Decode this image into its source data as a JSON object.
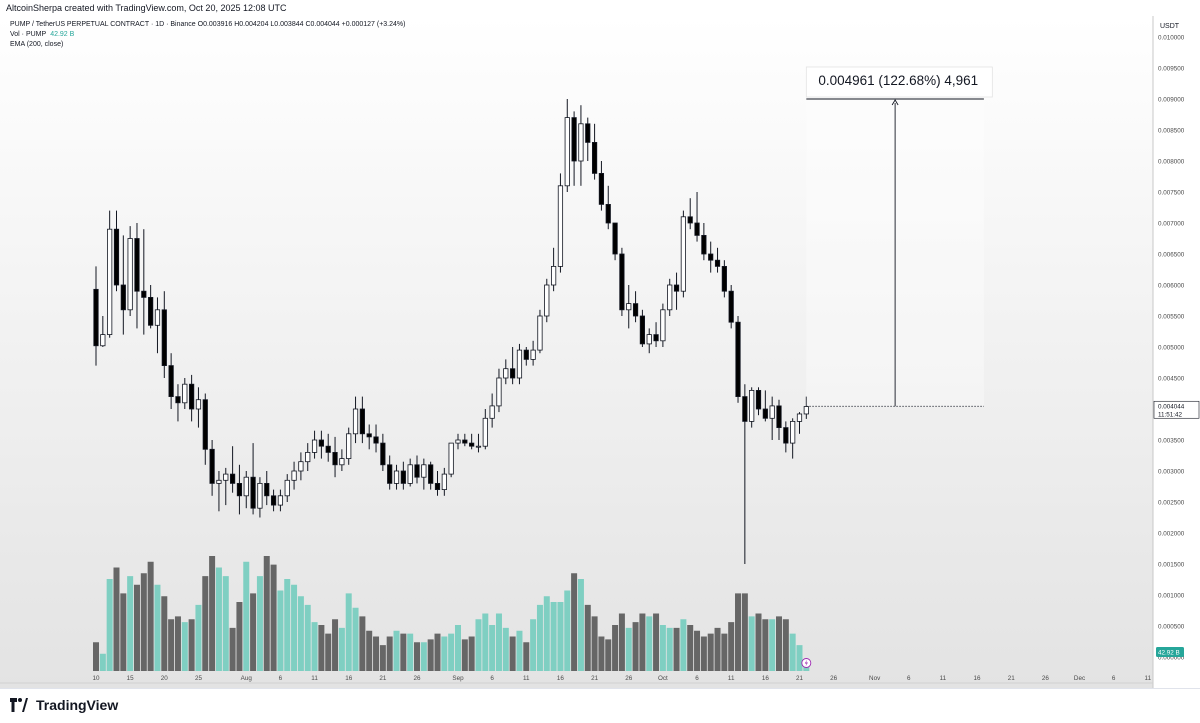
{
  "header": {
    "attribution": "AltcoinSherpa created with TradingView.com, Oct 20, 2025 12:08 UTC"
  },
  "legend": {
    "symbol_line": "PUMP / TetherUS PERPETUAL CONTRACT · 1D · Binance  O0.003916  H0.004204  L0.003844  C0.004044  +0.000127 (+3.24%)",
    "vol_label": "Vol · PUMP",
    "vol_value": "42.92 B",
    "ema_label": "EMA (200, close)"
  },
  "footer": {
    "brand": "TradingView"
  },
  "colors": {
    "up_candle": "#ffffff",
    "down_candle": "#000000",
    "candle_border": "#131722",
    "vol_up": "#7fcfc2",
    "vol_down": "#666666",
    "measure_line": "#131722",
    "vol_badge": "#26a69a"
  },
  "chart_data": {
    "type": "candlestick",
    "currency": "USDT",
    "ylim": [
      0.0,
      0.0102
    ],
    "y_ticks": [
      "0.010000",
      "0.009500",
      "0.009000",
      "0.008500",
      "0.008000",
      "0.007500",
      "0.007000",
      "0.006500",
      "0.006000",
      "0.005500",
      "0.005000",
      "0.004500",
      "0.004000",
      "0.003500",
      "0.003000",
      "0.002500",
      "0.002000",
      "0.001500",
      "0.001000",
      "0.000500",
      "0.000000"
    ],
    "x_ticks": [
      {
        "label": "10",
        "day": 0
      },
      {
        "label": "15",
        "day": 5
      },
      {
        "label": "20",
        "day": 10
      },
      {
        "label": "25",
        "day": 15
      },
      {
        "label": "Aug",
        "day": 22
      },
      {
        "label": "6",
        "day": 27
      },
      {
        "label": "11",
        "day": 32
      },
      {
        "label": "16",
        "day": 37
      },
      {
        "label": "21",
        "day": 42
      },
      {
        "label": "26",
        "day": 47
      },
      {
        "label": "Sep",
        "day": 53
      },
      {
        "label": "6",
        "day": 58
      },
      {
        "label": "11",
        "day": 63
      },
      {
        "label": "16",
        "day": 68
      },
      {
        "label": "21",
        "day": 73
      },
      {
        "label": "26",
        "day": 78
      },
      {
        "label": "Oct",
        "day": 83
      },
      {
        "label": "6",
        "day": 88
      },
      {
        "label": "11",
        "day": 93
      },
      {
        "label": "16",
        "day": 98
      },
      {
        "label": "21",
        "day": 103
      },
      {
        "label": "26",
        "day": 108
      },
      {
        "label": "Nov",
        "day": 114
      },
      {
        "label": "6",
        "day": 119
      },
      {
        "label": "11",
        "day": 124
      },
      {
        "label": "16",
        "day": 129
      },
      {
        "label": "21",
        "day": 134
      },
      {
        "label": "26",
        "day": 139
      },
      {
        "label": "Dec",
        "day": 144
      },
      {
        "label": "6",
        "day": 149
      },
      {
        "label": "11",
        "day": 154
      }
    ],
    "candles": [
      [
        0.00593,
        0.0063,
        0.0047,
        0.00502,
        1.0
      ],
      [
        0.00502,
        0.0055,
        0.005,
        0.0052,
        0.6
      ],
      [
        0.0052,
        0.0072,
        0.00515,
        0.0069,
        3.2
      ],
      [
        0.0069,
        0.0072,
        0.0059,
        0.006,
        3.6
      ],
      [
        0.006,
        0.0068,
        0.0052,
        0.0056,
        2.7
      ],
      [
        0.0056,
        0.00695,
        0.0055,
        0.00675,
        3.3
      ],
      [
        0.00675,
        0.007,
        0.0053,
        0.0059,
        3.0
      ],
      [
        0.0059,
        0.0069,
        0.0052,
        0.0058,
        3.4
      ],
      [
        0.0058,
        0.006,
        0.0053,
        0.00535,
        3.8
      ],
      [
        0.00535,
        0.0058,
        0.0049,
        0.0056,
        3.0
      ],
      [
        0.0056,
        0.0059,
        0.0045,
        0.0047,
        2.6
      ],
      [
        0.0047,
        0.0049,
        0.004,
        0.0042,
        1.8
      ],
      [
        0.0042,
        0.0044,
        0.0038,
        0.0041,
        1.9
      ],
      [
        0.0041,
        0.0045,
        0.004,
        0.0044,
        1.7
      ],
      [
        0.0044,
        0.00455,
        0.0038,
        0.004,
        1.8
      ],
      [
        0.004,
        0.00435,
        0.0037,
        0.00415,
        2.3
      ],
      [
        0.00415,
        0.00425,
        0.0031,
        0.00335,
        3.3
      ],
      [
        0.00335,
        0.0035,
        0.0026,
        0.0028,
        4.0
      ],
      [
        0.0028,
        0.003,
        0.00235,
        0.00285,
        3.6
      ],
      [
        0.00285,
        0.00305,
        0.00245,
        0.00295,
        3.3
      ],
      [
        0.00295,
        0.0034,
        0.00265,
        0.0028,
        1.5
      ],
      [
        0.0028,
        0.0031,
        0.0023,
        0.0026,
        2.4
      ],
      [
        0.0026,
        0.003,
        0.0024,
        0.0029,
        3.8
      ],
      [
        0.0029,
        0.00345,
        0.0023,
        0.0024,
        2.7
      ],
      [
        0.0024,
        0.0029,
        0.00225,
        0.0028,
        3.3
      ],
      [
        0.0028,
        0.003,
        0.00245,
        0.0026,
        4.0
      ],
      [
        0.0026,
        0.0027,
        0.00235,
        0.00245,
        3.7
      ],
      [
        0.00245,
        0.0027,
        0.00235,
        0.0026,
        2.8
      ],
      [
        0.0026,
        0.00295,
        0.0025,
        0.00285,
        3.2
      ],
      [
        0.00285,
        0.00315,
        0.0027,
        0.003,
        3.0
      ],
      [
        0.003,
        0.0033,
        0.00285,
        0.00315,
        2.6
      ],
      [
        0.00315,
        0.00345,
        0.003,
        0.0033,
        2.3
      ],
      [
        0.0033,
        0.00365,
        0.0032,
        0.0035,
        1.7
      ],
      [
        0.0035,
        0.00365,
        0.0032,
        0.0034,
        1.6
      ],
      [
        0.0034,
        0.0036,
        0.00315,
        0.0033,
        1.3
      ],
      [
        0.0033,
        0.00355,
        0.0029,
        0.0031,
        1.8
      ],
      [
        0.0031,
        0.00335,
        0.003,
        0.0032,
        1.5
      ],
      [
        0.0032,
        0.0037,
        0.0031,
        0.0036,
        2.7
      ],
      [
        0.0036,
        0.0042,
        0.00345,
        0.004,
        2.2
      ],
      [
        0.004,
        0.0042,
        0.00345,
        0.0036,
        1.9
      ],
      [
        0.0036,
        0.00375,
        0.00335,
        0.00355,
        1.4
      ],
      [
        0.00355,
        0.00375,
        0.0033,
        0.00345,
        1.2
      ],
      [
        0.00345,
        0.0036,
        0.003,
        0.0031,
        0.9
      ],
      [
        0.0031,
        0.00325,
        0.0027,
        0.0028,
        1.2
      ],
      [
        0.0028,
        0.0031,
        0.0027,
        0.003,
        1.4
      ],
      [
        0.003,
        0.00315,
        0.0027,
        0.0028,
        1.3
      ],
      [
        0.0028,
        0.0032,
        0.00275,
        0.0031,
        1.3
      ],
      [
        0.0031,
        0.00325,
        0.0028,
        0.0029,
        1.0
      ],
      [
        0.0029,
        0.0032,
        0.0027,
        0.0031,
        1.0
      ],
      [
        0.0031,
        0.00315,
        0.0027,
        0.0028,
        1.1
      ],
      [
        0.0028,
        0.003,
        0.0026,
        0.0027,
        1.3
      ],
      [
        0.0027,
        0.00305,
        0.0026,
        0.00295,
        1.2
      ],
      [
        0.00295,
        0.00345,
        0.0029,
        0.00345,
        1.3
      ],
      [
        0.00345,
        0.0036,
        0.00335,
        0.0035,
        1.6
      ],
      [
        0.0035,
        0.0036,
        0.0034,
        0.00345,
        1.1
      ],
      [
        0.00345,
        0.0036,
        0.00335,
        0.0034,
        1.2
      ],
      [
        0.0034,
        0.0036,
        0.0033,
        0.0034,
        1.8
      ],
      [
        0.0034,
        0.004,
        0.00335,
        0.00385,
        2.0
      ],
      [
        0.00385,
        0.00425,
        0.0037,
        0.00405,
        1.6
      ],
      [
        0.00405,
        0.00465,
        0.00395,
        0.0045,
        2.0
      ],
      [
        0.0045,
        0.0048,
        0.0044,
        0.00465,
        1.5
      ],
      [
        0.00465,
        0.005,
        0.0044,
        0.0045,
        1.2
      ],
      [
        0.0045,
        0.00505,
        0.0044,
        0.00495,
        1.4
      ],
      [
        0.00495,
        0.005,
        0.0047,
        0.0048,
        1.0
      ],
      [
        0.0048,
        0.0051,
        0.0047,
        0.00495,
        1.8
      ],
      [
        0.00495,
        0.0056,
        0.0049,
        0.0055,
        2.3
      ],
      [
        0.0055,
        0.0061,
        0.0054,
        0.006,
        2.6
      ],
      [
        0.006,
        0.0066,
        0.0059,
        0.0063,
        2.4
      ],
      [
        0.0063,
        0.0078,
        0.0062,
        0.0076,
        2.4
      ],
      [
        0.0076,
        0.009,
        0.0075,
        0.0087,
        2.8
      ],
      [
        0.0087,
        0.0088,
        0.0076,
        0.008,
        3.4
      ],
      [
        0.008,
        0.0089,
        0.0076,
        0.0086,
        3.2
      ],
      [
        0.0086,
        0.0087,
        0.008,
        0.0083,
        2.3
      ],
      [
        0.0083,
        0.0086,
        0.0077,
        0.0078,
        1.9
      ],
      [
        0.0078,
        0.008,
        0.0072,
        0.0073,
        1.2
      ],
      [
        0.0073,
        0.0076,
        0.0069,
        0.007,
        1.1
      ],
      [
        0.007,
        0.007,
        0.0064,
        0.0065,
        1.6
      ],
      [
        0.0065,
        0.0066,
        0.0055,
        0.0056,
        2.0
      ],
      [
        0.0056,
        0.006,
        0.0053,
        0.0057,
        1.5
      ],
      [
        0.0057,
        0.0059,
        0.0054,
        0.0055,
        1.7
      ],
      [
        0.0055,
        0.0056,
        0.005,
        0.00505,
        2.0
      ],
      [
        0.00505,
        0.0053,
        0.0049,
        0.0052,
        1.9
      ],
      [
        0.0052,
        0.0054,
        0.005,
        0.0051,
        2.0
      ],
      [
        0.0051,
        0.0057,
        0.005,
        0.0056,
        1.6
      ],
      [
        0.0056,
        0.0061,
        0.0055,
        0.006,
        1.5
      ],
      [
        0.006,
        0.0062,
        0.0056,
        0.0059,
        1.5
      ],
      [
        0.0059,
        0.0072,
        0.0058,
        0.0071,
        1.8
      ],
      [
        0.0071,
        0.0074,
        0.0069,
        0.007,
        1.6
      ],
      [
        0.007,
        0.0075,
        0.0067,
        0.0068,
        1.4
      ],
      [
        0.0068,
        0.007,
        0.0064,
        0.0065,
        1.2
      ],
      [
        0.0065,
        0.0067,
        0.0062,
        0.0064,
        1.3
      ],
      [
        0.0064,
        0.0066,
        0.0062,
        0.0063,
        1.5
      ],
      [
        0.0063,
        0.0064,
        0.0058,
        0.0059,
        1.3
      ],
      [
        0.0059,
        0.006,
        0.0053,
        0.0054,
        1.7
      ],
      [
        0.0054,
        0.0055,
        0.0041,
        0.0042,
        2.7
      ],
      [
        0.0042,
        0.0044,
        0.0015,
        0.0038,
        2.7
      ],
      [
        0.0038,
        0.00435,
        0.0037,
        0.0043,
        1.9
      ],
      [
        0.0043,
        0.00435,
        0.0039,
        0.004,
        2.0
      ],
      [
        0.004,
        0.0043,
        0.0038,
        0.00385,
        1.8
      ],
      [
        0.00385,
        0.0042,
        0.0035,
        0.00405,
        1.8
      ],
      [
        0.00405,
        0.00415,
        0.0035,
        0.0037,
        1.9
      ],
      [
        0.0037,
        0.0038,
        0.0033,
        0.00345,
        1.8
      ],
      [
        0.00345,
        0.00385,
        0.0032,
        0.0038,
        1.3
      ],
      [
        0.0038,
        0.00395,
        0.0036,
        0.00392,
        0.9
      ],
      [
        0.00392,
        0.0042,
        0.00384,
        0.00404,
        0.3
      ]
    ],
    "last_price": {
      "value": "0.004044",
      "countdown": "11:51:42"
    },
    "volume_badge": "42.92 B",
    "measure": {
      "label": "0.004961 (122.68%) 4,961",
      "from_price": 0.004044,
      "to_price": 0.009,
      "start_day": 104,
      "end_day": 130
    }
  }
}
